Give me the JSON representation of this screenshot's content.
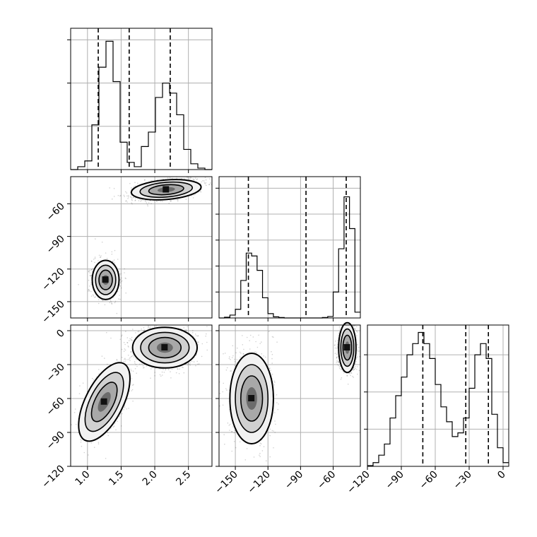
{
  "chart_data": {
    "type": "corner",
    "title": "",
    "parameters": [
      {
        "range": [
          0.75,
          2.85
        ],
        "ticks": [
          1.0,
          1.5,
          2.0,
          2.5
        ],
        "tick_labels": [
          "1.0",
          "1.5",
          "2.0",
          "2.5"
        ]
      },
      {
        "range": [
          -165,
          -35
        ],
        "ticks": [
          -150,
          -120,
          -90,
          -60
        ],
        "tick_labels": [
          "−150",
          "−120",
          "−90",
          "−60"
        ]
      },
      {
        "range": [
          -120,
          5
        ],
        "ticks": [
          -120,
          -90,
          -60,
          -30,
          0
        ],
        "tick_labels": [
          "−120",
          "−90",
          "−60",
          "−30",
          "0"
        ]
      }
    ],
    "diagonals": [
      {
        "param": 0,
        "bins": [
          0.75,
          0.855,
          0.96,
          1.065,
          1.17,
          1.275,
          1.38,
          1.485,
          1.59,
          1.695,
          1.8,
          1.905,
          2.01,
          2.115,
          2.22,
          2.325,
          2.43,
          2.535,
          2.64,
          2.745,
          2.85
        ],
        "counts": [
          0,
          0.02,
          0.06,
          0.31,
          0.71,
          0.89,
          0.61,
          0.19,
          0.05,
          0.02,
          0.16,
          0.26,
          0.5,
          0.6,
          0.53,
          0.38,
          0.14,
          0.04,
          0.01,
          0
        ],
        "ylim": [
          0,
          0.98
        ],
        "quantiles": [
          1.16,
          1.62,
          2.23
        ]
      },
      {
        "param": 1,
        "bins": [
          -165,
          -160,
          -155,
          -150,
          -145,
          -140,
          -135,
          -130,
          -125,
          -120,
          -115,
          -110,
          -105,
          -100,
          -95,
          -90,
          -85,
          -80,
          -75,
          -70,
          -65,
          -60,
          -55,
          -50,
          -45,
          -40,
          -35
        ],
        "counts": [
          0.0,
          0.005,
          0.02,
          0.06,
          0.26,
          0.45,
          0.43,
          0.33,
          0.14,
          0.03,
          0.008,
          0.003,
          0.0,
          0.0,
          0.0,
          0.0,
          0.0,
          0.0,
          0.0,
          0.003,
          0.01,
          0.18,
          0.48,
          0.84,
          0.62,
          0.04
        ],
        "ylim": [
          0,
          0.98
        ],
        "quantiles": [
          -138,
          -85,
          -48
        ]
      },
      {
        "param": 2,
        "bins": [
          -120,
          -115,
          -110,
          -105,
          -100,
          -95,
          -90,
          -85,
          -80,
          -75,
          -70,
          -65,
          -60,
          -55,
          -50,
          -45,
          -40,
          -35,
          -30,
          -25,
          -20,
          -15,
          -10,
          -5,
          0,
          5
        ],
        "counts": [
          0.002,
          0.01,
          0.03,
          0.06,
          0.13,
          0.19,
          0.24,
          0.3,
          0.33,
          0.36,
          0.33,
          0.29,
          0.22,
          0.16,
          0.12,
          0.08,
          0.09,
          0.13,
          0.21,
          0.3,
          0.33,
          0.29,
          0.14,
          0.05,
          0.01
        ],
        "ylim": [
          0,
          0.38
        ],
        "quantiles": [
          -71,
          -33,
          -13
        ]
      }
    ],
    "scatter_panels": [
      {
        "x_param": 0,
        "y_param": 1,
        "clusters": [
          {
            "center": [
              1.27,
              -130
            ],
            "sx": 0.1,
            "sy": 9,
            "rot": 0,
            "n": 900
          },
          {
            "center": [
              2.17,
              -47
            ],
            "sx": 0.26,
            "sy": 4.5,
            "rot": -0.15,
            "n": 1100
          }
        ]
      },
      {
        "x_param": 0,
        "y_param": 2,
        "clusters": [
          {
            "center": [
              1.25,
              -63
            ],
            "sx": 0.14,
            "sy": 19,
            "rot": 0.85,
            "n": 900
          },
          {
            "center": [
              2.15,
              -15
            ],
            "sx": 0.24,
            "sy": 9,
            "rot": 0,
            "n": 1100
          }
        ]
      },
      {
        "x_param": 1,
        "y_param": 2,
        "clusters": [
          {
            "center": [
              -135,
              -60
            ],
            "sx": 10,
            "sy": 20,
            "rot": 0,
            "n": 900
          },
          {
            "center": [
              -47,
              -15
            ],
            "sx": 4,
            "sy": 11,
            "rot": 0,
            "n": 1100
          }
        ]
      }
    ],
    "grid": true,
    "colors": {
      "hist": "#000000",
      "points": "#000000",
      "grid": "#b0b0b0",
      "background": "#ffffff"
    }
  }
}
